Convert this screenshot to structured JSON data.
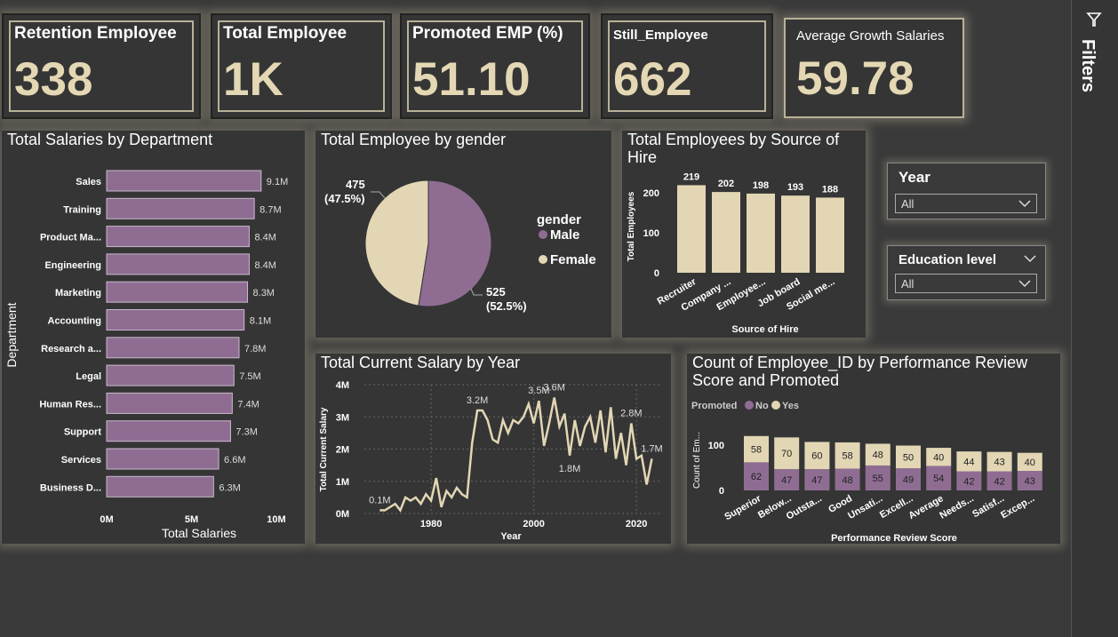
{
  "kpis": [
    {
      "label": "Retention Employee",
      "value": "338"
    },
    {
      "label": "Total Employee",
      "value": "1K"
    },
    {
      "label": "Promoted EMP (%)",
      "value": "51.10"
    },
    {
      "label": "Still_Employee",
      "value": "662"
    },
    {
      "label": "Average Growth Salaries",
      "value": "59.78"
    }
  ],
  "filters_label": "Filters",
  "slicers": {
    "year": {
      "title": "Year",
      "value": "All"
    },
    "education": {
      "title": "Education level",
      "value": "All"
    }
  },
  "colors": {
    "purple": "#8f6d93",
    "beige": "#e2d6b4",
    "text": "#ffffff"
  },
  "chart_data": [
    {
      "type": "bar",
      "title": "Total Salaries by Department",
      "xlabel": "Total Salaries",
      "ylabel": "Department",
      "categories": [
        "Sales",
        "Training",
        "Product Ma...",
        "Engineering",
        "Marketing",
        "Accounting",
        "Research a...",
        "Legal",
        "Human Res...",
        "Support",
        "Services",
        "Business D..."
      ],
      "values": [
        9.1,
        8.7,
        8.4,
        8.4,
        8.3,
        8.1,
        7.8,
        7.5,
        7.4,
        7.3,
        6.6,
        6.3
      ],
      "data_labels": [
        "9.1M",
        "8.7M",
        "8.4M",
        "8.4M",
        "8.3M",
        "8.1M",
        "7.8M",
        "7.5M",
        "7.4M",
        "7.3M",
        "6.6M",
        "6.3M"
      ],
      "xticks": [
        "0M",
        "5M",
        "10M"
      ],
      "xlim": [
        0,
        10
      ]
    },
    {
      "type": "pie",
      "title": "Total Employee by gender",
      "legend_title": "gender",
      "slices": [
        {
          "name": "Male",
          "value": 525,
          "label": "525",
          "pct": "(52.5%)"
        },
        {
          "name": "Female",
          "value": 475,
          "label": "475",
          "pct": "(47.5%)"
        }
      ]
    },
    {
      "type": "bar",
      "title": "Total Employees by Source of Hire",
      "xlabel": "Source of Hire",
      "ylabel": "Total Employees",
      "categories": [
        "Recruiter",
        "Company ...",
        "Employee...",
        "Job board",
        "Social me..."
      ],
      "values": [
        219,
        202,
        198,
        193,
        188
      ],
      "yticks": [
        "0",
        "100",
        "200"
      ],
      "ylim": [
        0,
        250
      ]
    },
    {
      "type": "line",
      "title": "Total Current Salary by Year",
      "xlabel": "Year",
      "ylabel": "Total Current Salary",
      "xticks": [
        "1980",
        "2000",
        "2020"
      ],
      "yticks": [
        "0M",
        "1M",
        "2M",
        "3M",
        "4M"
      ],
      "xlim": [
        1967,
        2025
      ],
      "ylim": [
        0,
        4
      ],
      "x": [
        1970,
        1971,
        1972,
        1973,
        1974,
        1975,
        1976,
        1977,
        1978,
        1979,
        1980,
        1981,
        1982,
        1983,
        1984,
        1985,
        1986,
        1987,
        1988,
        1989,
        1990,
        1991,
        1992,
        1993,
        1994,
        1995,
        1996,
        1997,
        1998,
        1999,
        2000,
        2001,
        2002,
        2003,
        2004,
        2005,
        2006,
        2007,
        2008,
        2009,
        2010,
        2011,
        2012,
        2013,
        2014,
        2015,
        2016,
        2017,
        2018,
        2019,
        2020,
        2021,
        2022,
        2023
      ],
      "y": [
        0.1,
        0.1,
        0.2,
        0.3,
        0.1,
        0.5,
        0.4,
        0.5,
        0.3,
        0.6,
        0.4,
        1.1,
        0.2,
        0.7,
        0.5,
        0.8,
        0.6,
        0.5,
        2.2,
        3.2,
        3.2,
        2.9,
        2.3,
        2.2,
        2.9,
        2.5,
        2.9,
        2.8,
        3.0,
        3.4,
        2.8,
        3.5,
        2.1,
        2.8,
        3.6,
        2.7,
        3.1,
        1.8,
        2.9,
        2.1,
        2.7,
        3.0,
        2.2,
        3.2,
        1.9,
        3.3,
        1.7,
        2.5,
        1.5,
        2.8,
        1.7,
        1.8,
        0.9,
        1.7
      ],
      "annotations": [
        {
          "x": 1970,
          "y": 0.1,
          "label": "0.1M"
        },
        {
          "x": 1989,
          "y": 3.2,
          "label": "3.2M"
        },
        {
          "x": 2001,
          "y": 3.5,
          "label": "3.5M"
        },
        {
          "x": 2004,
          "y": 3.6,
          "label": "3.6M"
        },
        {
          "x": 2007,
          "y": 1.8,
          "label": "1.8M"
        },
        {
          "x": 2019,
          "y": 2.8,
          "label": "2.8M"
        },
        {
          "x": 2023,
          "y": 1.7,
          "label": "1.7M"
        }
      ]
    },
    {
      "type": "bar",
      "stacked": true,
      "title": "Count of Employee_ID by Performance Review Score and Promoted",
      "xlabel": "Performance Review Score",
      "ylabel": "Count of Em...",
      "legend_title": "Promoted",
      "categories": [
        "Superior",
        "Below...",
        "Outsta...",
        "Good",
        "Unsati...",
        "Excell...",
        "Average",
        "Needs...",
        "Satisf...",
        "Excep..."
      ],
      "yticks": [
        "0",
        "100"
      ],
      "ylim": [
        0,
        130
      ],
      "series": [
        {
          "name": "No",
          "values": [
            62,
            47,
            47,
            48,
            55,
            49,
            54,
            42,
            42,
            43
          ]
        },
        {
          "name": "Yes",
          "values": [
            58,
            70,
            60,
            58,
            48,
            50,
            40,
            44,
            43,
            40
          ]
        }
      ]
    }
  ]
}
